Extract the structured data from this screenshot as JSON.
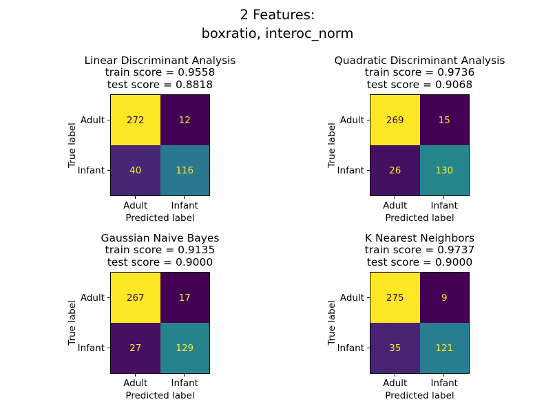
{
  "figure": {
    "suptitle_line1": "2 Features:",
    "suptitle_line2": "boxratio, interoc_norm"
  },
  "axis": {
    "xlabel": "Predicted label",
    "ylabel": "True label",
    "xticklabels": [
      "Adult",
      "Infant"
    ],
    "yticklabels": [
      "Adult",
      "Infant"
    ]
  },
  "colors": {
    "colormap_max": "#fde725",
    "colormap_min": "#440154",
    "cell_text_dark": "#440154",
    "cell_text_light": "#fde725",
    "spine": "#000000",
    "background": "#ffffff"
  },
  "chart_data": [
    {
      "type": "heatmap",
      "title": "Linear Discriminant Analysis",
      "train_score": 0.9558,
      "test_score": 0.8818,
      "xlabel": "Predicted label",
      "ylabel": "True label",
      "x_categories": [
        "Adult",
        "Infant"
      ],
      "y_categories": [
        "Adult",
        "Infant"
      ],
      "matrix": [
        [
          272,
          12
        ],
        [
          40,
          116
        ]
      ],
      "colormap": "viridis"
    },
    {
      "type": "heatmap",
      "title": "Quadratic Discriminant Analysis",
      "train_score": 0.9736,
      "test_score": 0.9068,
      "xlabel": "Predicted label",
      "ylabel": "True label",
      "x_categories": [
        "Adult",
        "Infant"
      ],
      "y_categories": [
        "Adult",
        "Infant"
      ],
      "matrix": [
        [
          269,
          15
        ],
        [
          26,
          130
        ]
      ],
      "colormap": "viridis"
    },
    {
      "type": "heatmap",
      "title": "Gaussian Naive Bayes",
      "train_score": 0.9135,
      "test_score": 0.9,
      "xlabel": "Predicted label",
      "ylabel": "True label",
      "x_categories": [
        "Adult",
        "Infant"
      ],
      "y_categories": [
        "Adult",
        "Infant"
      ],
      "matrix": [
        [
          267,
          17
        ],
        [
          27,
          129
        ]
      ],
      "colormap": "viridis"
    },
    {
      "type": "heatmap",
      "title": "K Nearest Neighbors",
      "train_score": 0.9737,
      "test_score": 0.9,
      "xlabel": "Predicted label",
      "ylabel": "True label",
      "x_categories": [
        "Adult",
        "Infant"
      ],
      "y_categories": [
        "Adult",
        "Infant"
      ],
      "matrix": [
        [
          275,
          9
        ],
        [
          35,
          121
        ]
      ],
      "colormap": "viridis"
    }
  ],
  "subplots": [
    {
      "classifier": "Linear Discriminant Analysis",
      "train_line": "train score = 0.9558",
      "test_line": "test score = 0.8818",
      "cells": [
        {
          "value": "272",
          "bg": "#fde725",
          "fg": "#440154"
        },
        {
          "value": "12",
          "bg": "#440154",
          "fg": "#fde725"
        },
        {
          "value": "40",
          "bg": "#472676",
          "fg": "#fde725"
        },
        {
          "value": "116",
          "bg": "#2a788e",
          "fg": "#fde725"
        }
      ]
    },
    {
      "classifier": "Quadratic Discriminant Analysis",
      "train_line": "train score = 0.9736",
      "test_line": "test score = 0.9068",
      "cells": [
        {
          "value": "269",
          "bg": "#fde725",
          "fg": "#440154"
        },
        {
          "value": "15",
          "bg": "#440154",
          "fg": "#fde725"
        },
        {
          "value": "26",
          "bg": "#461062",
          "fg": "#fde725"
        },
        {
          "value": "130",
          "bg": "#25858d",
          "fg": "#fde725"
        }
      ]
    },
    {
      "classifier": "Gaussian Naive Bayes",
      "train_line": "train score = 0.9135",
      "test_line": "test score = 0.9000",
      "cells": [
        {
          "value": "267",
          "bg": "#fde725",
          "fg": "#440154"
        },
        {
          "value": "17",
          "bg": "#440154",
          "fg": "#fde725"
        },
        {
          "value": "27",
          "bg": "#460f61",
          "fg": "#fde725"
        },
        {
          "value": "129",
          "bg": "#26838d",
          "fg": "#fde725"
        }
      ]
    },
    {
      "classifier": "K Nearest Neighbors",
      "train_line": "train score = 0.9737",
      "test_line": "test score = 0.9000",
      "cells": [
        {
          "value": "275",
          "bg": "#fde725",
          "fg": "#440154"
        },
        {
          "value": "9",
          "bg": "#440154",
          "fg": "#fde725"
        },
        {
          "value": "35",
          "bg": "#482374",
          "fg": "#fde725"
        },
        {
          "value": "121",
          "bg": "#287d8e",
          "fg": "#fde725"
        }
      ]
    }
  ]
}
